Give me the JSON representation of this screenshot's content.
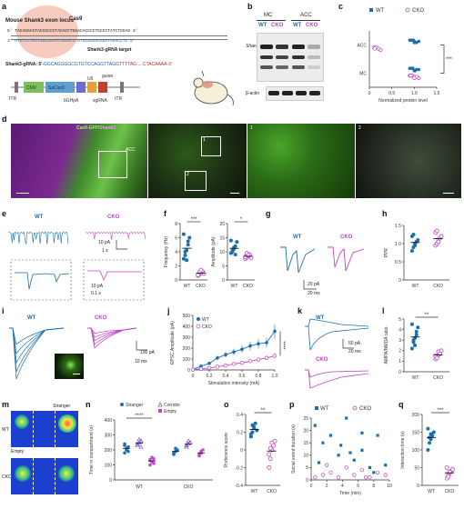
{
  "labels": {
    "a": "a",
    "b": "b",
    "c": "c",
    "d": "d",
    "e": "e",
    "f": "f",
    "g": "g",
    "h": "h",
    "i": "i",
    "j": "j",
    "k": "k",
    "l": "l",
    "m": "m",
    "n": "n",
    "o": "o",
    "p": "p",
    "q": "q"
  },
  "panel_a": {
    "locus_title": "Mouse Shank3 exon locus",
    "cas9": "Cas9",
    "seq_top": "5' TACAGGACTACCGCCCTACACCTGGACACCCCTGCCCTATCTGGAG 3'",
    "seq_bottom": "3' ATGTCCTGATGGCGGATGTGGACCTGTGCGGGACGGATAGACCTC 5'",
    "target_label": "Shank3-gRNA target",
    "grna_label": "Shank3-gRNA: 5'-",
    "grna_seq": "GGCAGGGGCGTGTCCAGGTTAGG",
    "grna_tail": "TTTTAG.....CTACAAAA-3'",
    "construct": [
      "ITR",
      "CMV",
      "SaCas9",
      "U6",
      "bGHpA",
      "sgRNA",
      "ITR"
    ],
    "guide": "guide"
  },
  "panel_b": {
    "mc": "MC",
    "acc": "ACC",
    "wt": "WT",
    "cko": "CKO",
    "shank3": "Shank3",
    "actin": "β-actin"
  },
  "panel_c": {
    "chart_data": {
      "type": "scatter",
      "legend": [
        "WT",
        "CKO"
      ],
      "categories": [
        "ACC",
        "MC"
      ],
      "xlabel": "Normalized protein level",
      "xlim": [
        0,
        1.5
      ],
      "xticks": [
        "0",
        "0.5",
        "1.0",
        "1.5"
      ],
      "sig": "***",
      "series": [
        {
          "name": "WT",
          "ACC": [
            0.95,
            1.0,
            1.05,
            0.9,
            1.1,
            1.0,
            0.98
          ],
          "MC": [
            0.95,
            1.05,
            1.0,
            0.9,
            1.1,
            1.02,
            0.97
          ]
        },
        {
          "name": "CKO",
          "ACC": [
            0.1,
            0.2,
            0.25,
            0.15,
            0.12
          ],
          "MC": [
            0.9,
            1.0,
            1.1,
            0.95,
            1.05,
            1.0,
            0.92
          ]
        }
      ]
    }
  },
  "panel_d": {
    "title": "Cas9-GFP/",
    "title2": "Shank3",
    "acc": "ACC",
    "n1": "1",
    "n2": "2"
  },
  "panel_e": {
    "wt": "WT",
    "cko": "CKO",
    "sb1": "10 pA",
    "sb2": "1 s",
    "sb3": "10 pA",
    "sb4": "0.1 s"
  },
  "panel_f": {
    "chart_data": [
      {
        "type": "scatter",
        "ylabel": "Frequency (Hz)",
        "yticks": [
          "0",
          "2",
          "4",
          "6",
          "8"
        ],
        "ylim": [
          0,
          8
        ],
        "categories": [
          "WT",
          "CKO"
        ],
        "sig": "***",
        "WT": [
          3.0,
          3.5,
          4.2,
          5.5,
          6.0,
          6.5,
          4.0,
          2.8,
          5.0
        ],
        "CKO": [
          0.6,
          0.8,
          1.0,
          1.2,
          0.9,
          0.7,
          1.1,
          1.4
        ]
      },
      {
        "type": "scatter",
        "ylabel": "Amplitude (pA)",
        "yticks": [
          "0",
          "5",
          "10",
          "15",
          "20"
        ],
        "ylim": [
          0,
          20
        ],
        "categories": [
          "WT",
          "CKO"
        ],
        "sig": "*",
        "WT": [
          9.5,
          10.5,
          11.0,
          12.0,
          13.5,
          14.0,
          10.0,
          11.5,
          9.0
        ],
        "CKO": [
          7.5,
          8.0,
          8.5,
          9.0,
          7.8,
          8.2,
          9.5,
          8.8
        ]
      }
    ]
  },
  "panel_g": {
    "wt": "WT",
    "cko": "CKO",
    "sb1": "20 pA",
    "sb2": "20 ms"
  },
  "panel_h": {
    "chart_data": {
      "type": "scatter",
      "ylabel": "PPR",
      "yticks": [
        "0",
        "0.5",
        "1.0",
        "1.5"
      ],
      "ylim": [
        0,
        1.5
      ],
      "categories": [
        "WT",
        "CKO"
      ],
      "WT": [
        0.8,
        0.9,
        1.0,
        1.05,
        1.1,
        1.2,
        1.25,
        0.95
      ],
      "CKO": [
        0.95,
        1.0,
        1.1,
        1.15,
        1.2,
        1.3,
        1.35,
        1.05
      ]
    }
  },
  "panel_i": {
    "wt": "WT",
    "cko": "CKO",
    "sb1": "100 pA",
    "sb2": "10 ms"
  },
  "panel_j": {
    "chart_data": {
      "type": "line",
      "legend": [
        "WT",
        "CKO"
      ],
      "xlabel": "Stimulation intensity (mA)",
      "ylabel": "EPSC Amplitude (pA)",
      "xticks": [
        "0",
        "0.2",
        "0.4",
        "0.6",
        "0.8",
        "1.0"
      ],
      "yticks": [
        "0",
        "100",
        "200",
        "300",
        "400",
        "500"
      ],
      "xlim": [
        0,
        1.0
      ],
      "ylim": [
        0,
        500
      ],
      "sig": "****",
      "x": [
        0,
        0.1,
        0.2,
        0.3,
        0.4,
        0.5,
        0.6,
        0.7,
        0.8,
        0.9,
        1.0
      ],
      "series": [
        {
          "name": "WT",
          "values": [
            5,
            35,
            60,
            110,
            140,
            165,
            190,
            220,
            240,
            250,
            355
          ]
        },
        {
          "name": "CKO",
          "values": [
            3,
            10,
            18,
            30,
            40,
            55,
            65,
            80,
            95,
            110,
            130
          ]
        }
      ]
    }
  },
  "panel_k": {
    "wt": "WT",
    "cko": "CKO",
    "sb1": "50 pA",
    "sb2": "20 ms"
  },
  "panel_l": {
    "chart_data": {
      "type": "scatter",
      "ylabel": "AMPA/NMDA ratio",
      "yticks": [
        "0",
        "1",
        "2",
        "3",
        "4",
        "5"
      ],
      "ylim": [
        0,
        5
      ],
      "categories": [
        "WT",
        "CKO"
      ],
      "sig": "**",
      "WT": [
        2.2,
        2.8,
        3.2,
        3.8,
        4.2,
        4.5,
        3.0,
        2.5,
        3.5
      ],
      "CKO": [
        1.2,
        1.4,
        1.6,
        1.8,
        2.0,
        1.5,
        1.3,
        1.9,
        1.7
      ]
    }
  },
  "panel_m": {
    "stranger": "Stranger",
    "empty": "Empty",
    "wt": "WT",
    "cko": "CKO"
  },
  "panel_n": {
    "chart_data": {
      "type": "scatter",
      "legend": [
        "Stranger",
        "Corridor",
        "Empty"
      ],
      "ylabel": "Time in compartment (s)",
      "yticks": [
        "0",
        "100",
        "200",
        "300",
        "400"
      ],
      "ylim": [
        0,
        400
      ],
      "categories": [
        "WT",
        "CKO"
      ],
      "sig": "****",
      "WT": {
        "Stranger": [
          180,
          200,
          220,
          240,
          210,
          190,
          230
        ],
        "Corridor": [
          230,
          250,
          260,
          240,
          270,
          220
        ],
        "Empty": [
          100,
          120,
          140,
          130,
          150,
          110,
          135
        ]
      },
      "CKO": {
        "Stranger": [
          170,
          190,
          200,
          180,
          210
        ],
        "Corridor": [
          220,
          240,
          250,
          230,
          260
        ],
        "Empty": [
          160,
          180,
          200,
          170,
          190
        ]
      }
    }
  },
  "panel_o": {
    "chart_data": {
      "type": "scatter",
      "ylabel": "Preference score",
      "yticks": [
        "-0.4",
        "-0.2",
        "0",
        "0.2",
        "0.4"
      ],
      "ylim": [
        -0.4,
        0.4
      ],
      "categories": [
        "WT",
        "CKO"
      ],
      "sig": "**",
      "WT": [
        0.15,
        0.2,
        0.25,
        0.3,
        0.22,
        0.18,
        0.28,
        0.26
      ],
      "CKO": [
        -0.2,
        -0.1,
        0.0,
        0.05,
        0.1,
        -0.05,
        0.02,
        0.08
      ]
    }
  },
  "panel_p": {
    "chart_data": {
      "type": "scatter",
      "legend": [
        "WT",
        "CKO"
      ],
      "xlabel": "Time (min)",
      "ylabel": "Social event duration (s)",
      "xticks": [
        "0",
        "2",
        "4",
        "6",
        "8",
        "10"
      ],
      "yticks": [
        "0",
        "5",
        "10",
        "15",
        "20",
        "25"
      ],
      "xlim": [
        0,
        10
      ],
      "ylim": [
        0,
        25
      ],
      "series": [
        {
          "name": "WT",
          "x": [
            0.5,
            1.5,
            2.5,
            3.5,
            4.5,
            5.5,
            6.5,
            7.5,
            8.5,
            9.5,
            3.8,
            6.5,
            1.0,
            8.0,
            5.0
          ],
          "y": [
            22,
            15,
            18,
            10,
            25,
            8,
            12,
            5,
            18,
            6,
            14,
            19,
            7,
            3,
            11
          ]
        },
        {
          "name": "CKO",
          "x": [
            0.5,
            1.5,
            2.5,
            3.5,
            4.5,
            5.5,
            6.5,
            7.5,
            8.5,
            9.5,
            2.0,
            7.0
          ],
          "y": [
            1,
            2,
            3,
            1,
            5,
            2,
            4,
            1,
            3,
            2,
            6,
            1
          ]
        }
      ]
    }
  },
  "panel_q": {
    "chart_data": {
      "type": "scatter",
      "ylabel": "Interaction time (s)",
      "yticks": [
        "0",
        "50",
        "100",
        "150",
        "200"
      ],
      "ylim": [
        0,
        200
      ],
      "categories": [
        "WT",
        "CKO"
      ],
      "sig": "***",
      "WT": [
        100,
        120,
        130,
        140,
        150,
        160,
        135,
        145
      ],
      "CKO": [
        20,
        30,
        35,
        40,
        45,
        50,
        25,
        38
      ]
    }
  }
}
